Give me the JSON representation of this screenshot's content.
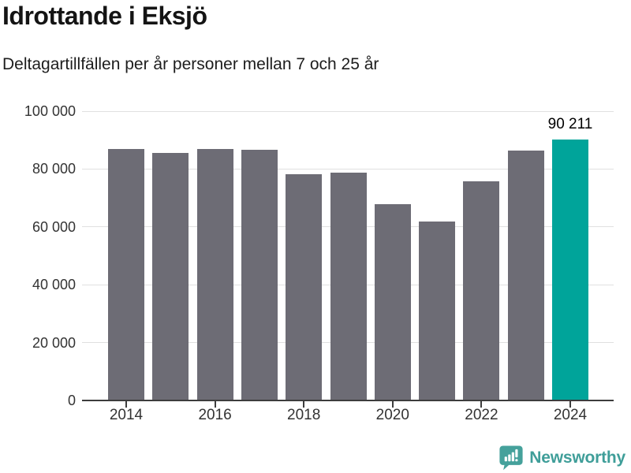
{
  "header": {
    "title": "Idrottande i Eksjö",
    "subtitle": "Deltagartillfällen per år personer mellan 7 och 25 år"
  },
  "chart_data": {
    "type": "bar",
    "title": "Idrottande i Eksjö",
    "subtitle": "Deltagartillfällen per år personer mellan 7 och 25 år",
    "categories": [
      "2014",
      "2015",
      "2016",
      "2017",
      "2018",
      "2019",
      "2020",
      "2021",
      "2022",
      "2023",
      "2024"
    ],
    "values": [
      87000,
      85500,
      86800,
      86700,
      78300,
      78700,
      67800,
      61800,
      75700,
      86300,
      90211
    ],
    "highlight_index": 10,
    "value_label": {
      "index": 10,
      "text": "90 211"
    },
    "xlabel": "",
    "ylabel": "",
    "ylim": [
      0,
      100000
    ],
    "yticks": [
      0,
      20000,
      40000,
      60000,
      80000,
      100000
    ],
    "ytick_labels": [
      "0",
      "20 000",
      "40 000",
      "60 000",
      "80 000",
      "100 000"
    ],
    "xtick_shown_labels": [
      "2014",
      "2016",
      "2018",
      "2020",
      "2022",
      "2024"
    ],
    "xtick_every": 2,
    "grid": "horizontal",
    "legend": "none",
    "colors": {
      "bar": "#6d6c75",
      "highlight": "#00a49a",
      "grid": "#e0e0e0",
      "axis": "#3d3d3d",
      "tick_label": "#333333",
      "value_label": "#000000"
    }
  },
  "footer": {
    "brand": "Newsworthy",
    "brand_color": "#3f9e99",
    "logo_icon": "bar-chart-speech-bubble-icon",
    "logo_color": "#45a19b"
  }
}
